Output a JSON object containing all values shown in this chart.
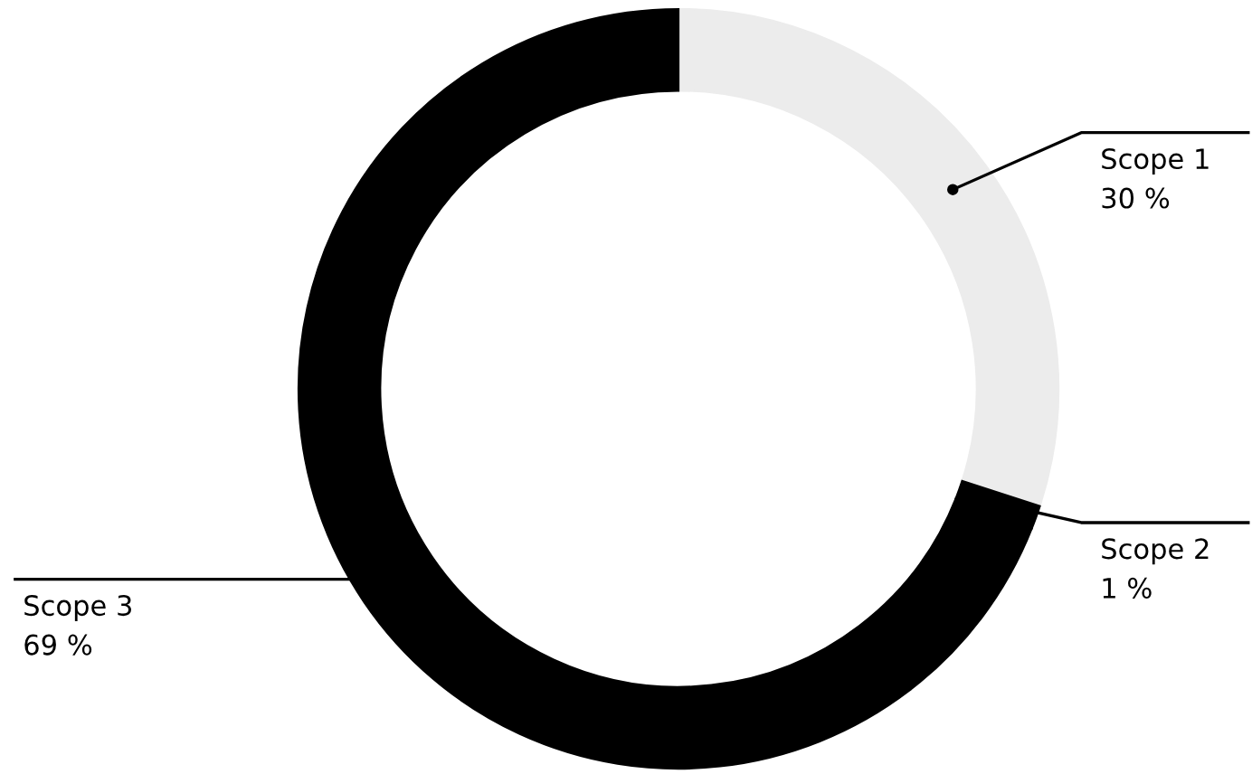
{
  "chart_data": {
    "type": "donut",
    "categories": [
      "Scope 1",
      "Scope 2",
      "Scope 3"
    ],
    "values": [
      30,
      1,
      69
    ],
    "colors": [
      "#ececec",
      "#000000",
      "#000000"
    ],
    "value_labels": [
      "30 %",
      "1 %",
      "69 %"
    ]
  }
}
